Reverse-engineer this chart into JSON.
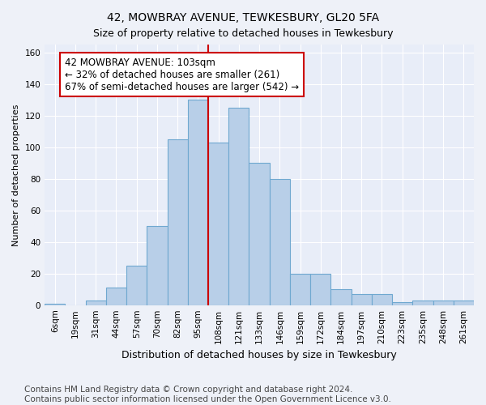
{
  "title": "42, MOWBRAY AVENUE, TEWKESBURY, GL20 5FA",
  "subtitle": "Size of property relative to detached houses in Tewkesbury",
  "xlabel": "Distribution of detached houses by size in Tewkesbury",
  "ylabel": "Number of detached properties",
  "bar_labels": [
    "6sqm",
    "19sqm",
    "31sqm",
    "44sqm",
    "57sqm",
    "70sqm",
    "82sqm",
    "95sqm",
    "108sqm",
    "121sqm",
    "133sqm",
    "146sqm",
    "159sqm",
    "172sqm",
    "184sqm",
    "197sqm",
    "210sqm",
    "223sqm",
    "235sqm",
    "248sqm",
    "261sqm"
  ],
  "bar_values": [
    1,
    0,
    3,
    11,
    25,
    50,
    105,
    130,
    103,
    125,
    90,
    80,
    20,
    20,
    10,
    7,
    7,
    2,
    3,
    3,
    3
  ],
  "bar_color": "#b8cfe8",
  "bar_edge_color": "#6fa8d0",
  "vline_x": 8.0,
  "vline_color": "#cc0000",
  "annotation_text": "42 MOWBRAY AVENUE: 103sqm\n← 32% of detached houses are smaller (261)\n67% of semi-detached houses are larger (542) →",
  "annotation_box_color": "#ffffff",
  "annotation_box_edge": "#cc0000",
  "ylim": [
    0,
    165
  ],
  "yticks": [
    0,
    20,
    40,
    60,
    80,
    100,
    120,
    140,
    160
  ],
  "footer1": "Contains HM Land Registry data © Crown copyright and database right 2024.",
  "footer2": "Contains public sector information licensed under the Open Government Licence v3.0.",
  "bg_color": "#eef1f8",
  "plot_bg_color": "#e8edf8",
  "title_fontsize": 10,
  "subtitle_fontsize": 9,
  "xlabel_fontsize": 9,
  "ylabel_fontsize": 8,
  "tick_fontsize": 7.5,
  "annotation_fontsize": 8.5,
  "footer_fontsize": 7.5
}
